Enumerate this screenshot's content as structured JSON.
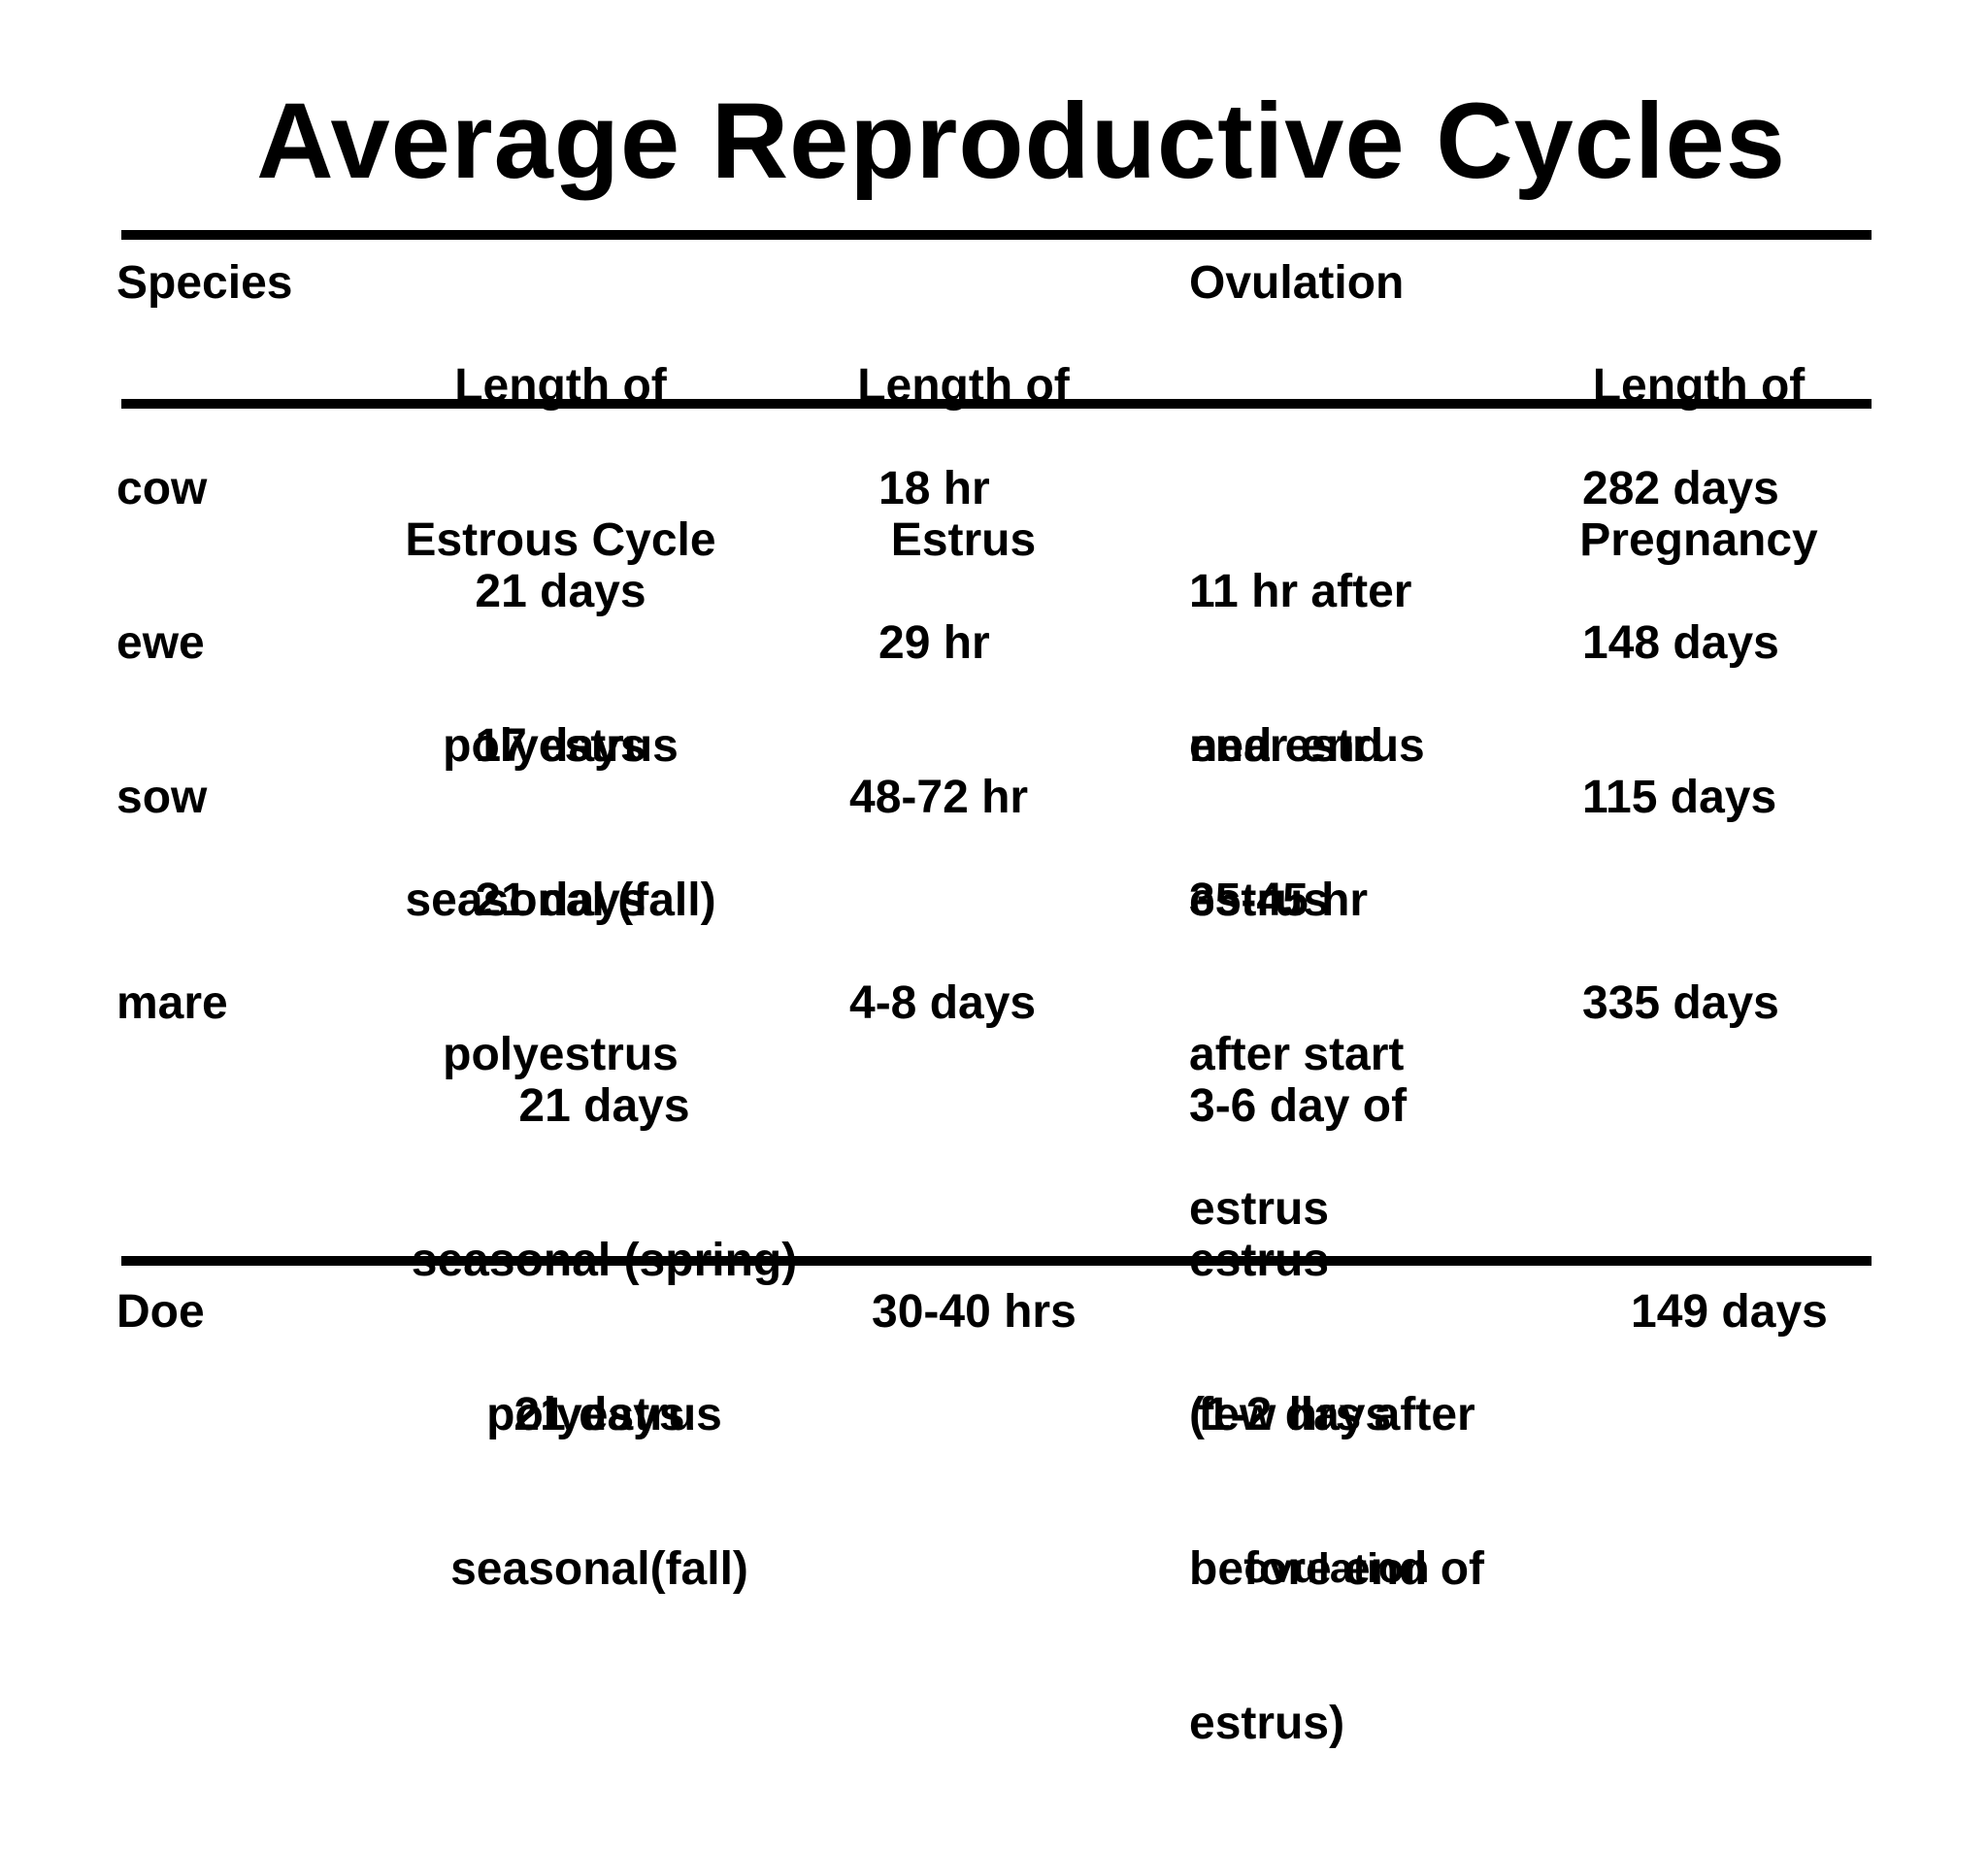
{
  "title": "Average Reproductive Cycles",
  "headers": {
    "species": "Species",
    "cycle": [
      "Length of",
      "Estrous Cycle"
    ],
    "estrus": [
      "Length of",
      "Estrus"
    ],
    "ovulation": "Ovulation",
    "pregnancy": [
      "Length of",
      "Pregnancy"
    ]
  },
  "rows": [
    {
      "species": "cow",
      "cycle": [
        "21 days",
        "polyestrus"
      ],
      "estrus": "18 hr",
      "ovulation": [
        "11 hr after",
        "end estrus"
      ],
      "pregnancy": "282 days"
    },
    {
      "species": "ewe",
      "cycle": [
        "17 days",
        "seasonal (fall)"
      ],
      "estrus": "29 hr",
      "ovulation": [
        "near end",
        "estrus"
      ],
      "pregnancy": "148 days"
    },
    {
      "species": "sow",
      "cycle": [
        "21 days",
        "polyestrus"
      ],
      "estrus": "48-72 hr",
      "ovulation": [
        "35-45 hr",
        "after start",
        "estrus"
      ],
      "pregnancy": "115 days"
    },
    {
      "species": "mare",
      "cycle": [
        "21 days",
        "seasonal (spring)",
        "polyestrus"
      ],
      "estrus": "4-8 days",
      "ovulation": [
        "3-6 day of",
        "estrus",
        "(1-2 days",
        "before end of",
        "estrus)"
      ],
      "pregnancy": "335 days"
    }
  ],
  "footer_row": {
    "species": "Doe",
    "cycle": [
      "21 days",
      "seasonal(fall)"
    ],
    "estrus": "30-40 hrs",
    "ovulation": [
      "few hrs after",
      "ovulation"
    ],
    "pregnancy": "149 days"
  }
}
